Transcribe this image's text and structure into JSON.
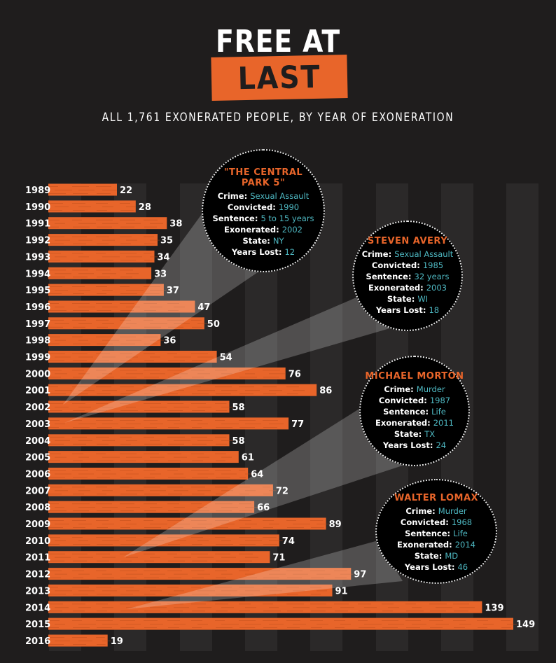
{
  "header": {
    "title_line1": "FREE AT",
    "title_line2": "LAST",
    "subtitle": "ALL 1,761 EXONERATED PEOPLE, BY YEAR OF EXONERATION"
  },
  "colors": {
    "background": "#1f1d1d",
    "bar": "#e8652a",
    "accent_text": "#4eb8c2",
    "circle": "#000000"
  },
  "chart_data": {
    "type": "bar",
    "orientation": "horizontal",
    "title": "FREE AT LAST",
    "subtitle": "ALL 1,761 EXONERATED PEOPLE, BY YEAR OF EXONERATION",
    "categories": [
      "1989",
      "1990",
      "1991",
      "1992",
      "1993",
      "1994",
      "1995",
      "1996",
      "1997",
      "1998",
      "1999",
      "2000",
      "2001",
      "2002",
      "2003",
      "2004",
      "2005",
      "2006",
      "2007",
      "2008",
      "2009",
      "2010",
      "2011",
      "2012",
      "2013",
      "2014",
      "2015",
      "2016"
    ],
    "values": [
      22,
      28,
      38,
      35,
      34,
      33,
      37,
      47,
      50,
      36,
      54,
      76,
      86,
      58,
      77,
      58,
      61,
      64,
      72,
      66,
      89,
      74,
      71,
      97,
      91,
      139,
      149,
      19
    ],
    "xlim": [
      0,
      149
    ],
    "grid": false
  },
  "cases": [
    {
      "name": "\"THE CENTRAL PARK 5\"",
      "rows": [
        {
          "label": "Crime:",
          "value": "Sexual Assault"
        },
        {
          "label": "Convicted:",
          "value": "1990"
        },
        {
          "label": "Sentence:",
          "value": "5 to 15 years"
        },
        {
          "label": "Exonerated:",
          "value": "2002"
        },
        {
          "label": "State:",
          "value": "NY"
        },
        {
          "label": "Years Lost:",
          "value": "12"
        }
      ]
    },
    {
      "name": "STEVEN AVERY",
      "rows": [
        {
          "label": "Crime:",
          "value": "Sexual Assault"
        },
        {
          "label": "Convicted:",
          "value": "1985"
        },
        {
          "label": "Sentence:",
          "value": "32 years"
        },
        {
          "label": "Exonerated:",
          "value": "2003"
        },
        {
          "label": "State:",
          "value": "WI"
        },
        {
          "label": "Years Lost:",
          "value": "18"
        }
      ]
    },
    {
      "name": "MICHAEL MORTON",
      "rows": [
        {
          "label": "Crime:",
          "value": "Murder"
        },
        {
          "label": "Convicted:",
          "value": "1987"
        },
        {
          "label": "Sentence:",
          "value": "Life"
        },
        {
          "label": "Exonerated:",
          "value": "2011"
        },
        {
          "label": "State:",
          "value": "TX"
        },
        {
          "label": "Years Lost:",
          "value": "24"
        }
      ]
    },
    {
      "name": "WALTER LOMAX",
      "rows": [
        {
          "label": "Crime:",
          "value": "Murder"
        },
        {
          "label": "Convicted:",
          "value": "1968"
        },
        {
          "label": "Sentence:",
          "value": "Life"
        },
        {
          "label": "Exonerated:",
          "value": "2014"
        },
        {
          "label": "State:",
          "value": "MD"
        },
        {
          "label": "Years Lost:",
          "value": "46"
        }
      ]
    }
  ]
}
